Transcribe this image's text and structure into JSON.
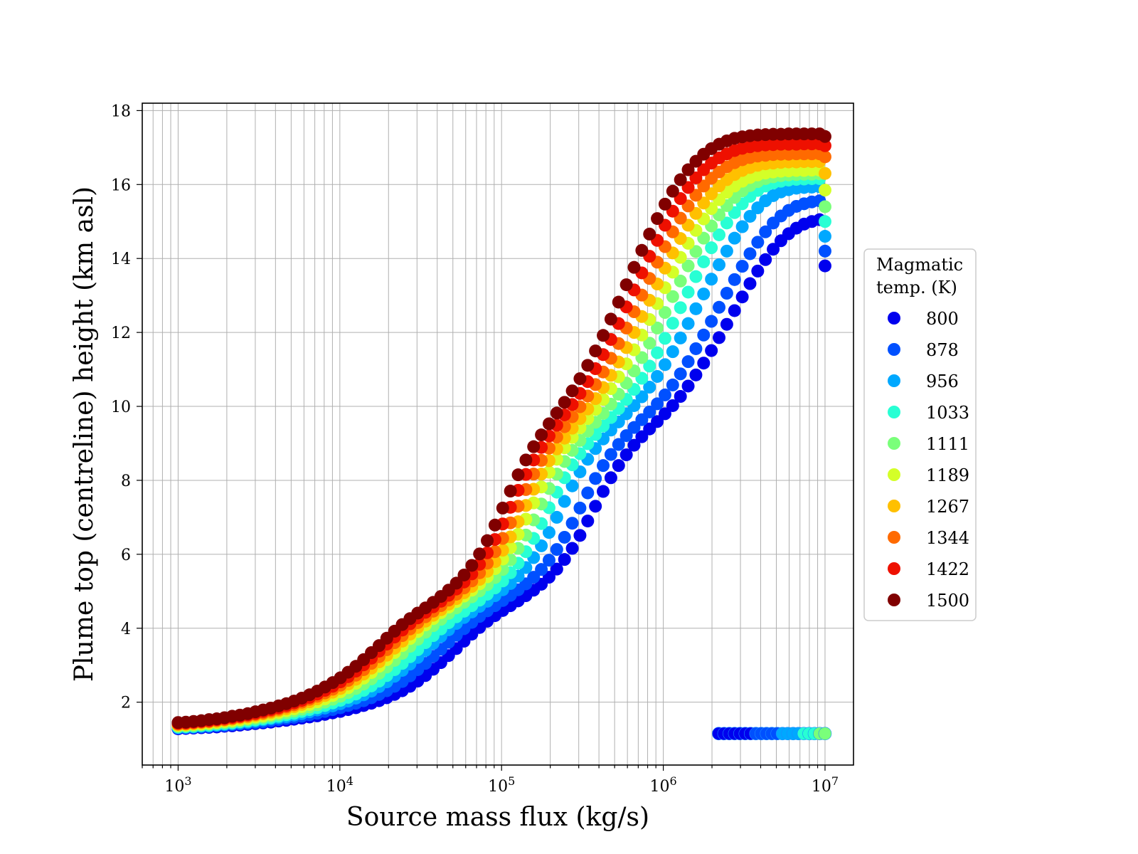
{
  "chart_data": {
    "type": "scatter",
    "title": "",
    "xlabel": "Source mass flux (kg/s)",
    "ylabel": "Plume top (centreline) height (km asl)",
    "xscale": "log",
    "xlim": [
      600,
      15000000
    ],
    "ylim": [
      0.3,
      18.2
    ],
    "x_ticks": [
      {
        "base": "10",
        "exp": "3"
      },
      {
        "base": "10",
        "exp": "4"
      },
      {
        "base": "10",
        "exp": "5"
      },
      {
        "base": "10",
        "exp": "6"
      },
      {
        "base": "10",
        "exp": "7"
      }
    ],
    "x_tick_values": [
      1000,
      10000,
      100000,
      1000000,
      10000000
    ],
    "y_ticks": [
      "2",
      "4",
      "6",
      "8",
      "10",
      "12",
      "14",
      "16",
      "18"
    ],
    "y_tick_values": [
      2,
      4,
      6,
      8,
      10,
      12,
      14,
      16,
      18
    ],
    "grid": true,
    "legend_title": [
      "Magmatic",
      "temp. (K)"
    ],
    "legend_position": "right",
    "x": [
      1000,
      1116,
      1246,
      1391,
      1553,
      1733,
      1935,
      2160,
      2411,
      2692,
      3005,
      3354,
      3744,
      4180,
      4666,
      5209,
      5815,
      6491,
      7246,
      8089,
      9030,
      10080,
      11252,
      12561,
      14022,
      15653,
      17474,
      19506,
      21775,
      24307,
      27135,
      30291,
      33814,
      37747,
      42138,
      47039,
      52510,
      58617,
      65435,
      73046,
      81542,
      91027,
      101614,
      113434,
      126627,
      141356,
      157797,
      176151,
      196640,
      219512,
      245044,
      273545,
      305362,
      340880,
      380528,
      424789,
      474196,
      529352,
      590923,
      659653,
      736379,
      822029,
      917641,
      1024374,
      1143523,
      1276530,
      1425006,
      1590752,
      1775776,
      1982320,
      2212888,
      2470275,
      2757594,
      3078320,
      3436380,
      3836080,
      4282270,
      4780350,
      5336360,
      5957060,
      6649900,
      7423400,
      8287000,
      9251000,
      10000000
    ],
    "series": [
      {
        "name": "800",
        "color": "#0000ee",
        "y": [
          1.28,
          1.29,
          1.3,
          1.31,
          1.32,
          1.33,
          1.35,
          1.36,
          1.38,
          1.4,
          1.42,
          1.44,
          1.46,
          1.49,
          1.51,
          1.54,
          1.57,
          1.6,
          1.63,
          1.67,
          1.71,
          1.75,
          1.8,
          1.85,
          1.91,
          1.97,
          2.04,
          2.12,
          2.21,
          2.31,
          2.43,
          2.57,
          2.72,
          2.89,
          3.07,
          3.26,
          3.45,
          3.65,
          3.84,
          4.02,
          4.19,
          4.34,
          4.48,
          4.61,
          4.74,
          4.88,
          5.03,
          5.19,
          5.38,
          5.6,
          5.86,
          6.16,
          6.51,
          6.9,
          7.3,
          7.7,
          8.07,
          8.4,
          8.69,
          8.95,
          9.18,
          9.39,
          9.59,
          9.8,
          10.02,
          10.27,
          10.55,
          10.85,
          11.17,
          11.51,
          11.86,
          12.22,
          12.59,
          12.96,
          13.32,
          13.66,
          13.97,
          14.25,
          14.48,
          14.67,
          14.82,
          14.93,
          15.0,
          15.05,
          13.8
        ]
      },
      {
        "name": "878",
        "color": "#0050ff",
        "y": [
          1.3,
          1.31,
          1.32,
          1.33,
          1.34,
          1.36,
          1.37,
          1.39,
          1.41,
          1.43,
          1.45,
          1.47,
          1.5,
          1.53,
          1.56,
          1.59,
          1.62,
          1.66,
          1.7,
          1.75,
          1.8,
          1.85,
          1.91,
          1.97,
          2.04,
          2.12,
          2.21,
          2.31,
          2.43,
          2.56,
          2.71,
          2.88,
          3.05,
          3.24,
          3.43,
          3.62,
          3.81,
          3.99,
          4.16,
          4.32,
          4.47,
          4.61,
          4.75,
          4.89,
          5.04,
          5.2,
          5.38,
          5.59,
          5.84,
          6.13,
          6.46,
          6.84,
          7.25,
          7.66,
          8.05,
          8.4,
          8.7,
          8.97,
          9.21,
          9.43,
          9.64,
          9.85,
          10.07,
          10.31,
          10.58,
          10.88,
          11.21,
          11.56,
          11.93,
          12.3,
          12.68,
          13.06,
          13.43,
          13.79,
          14.13,
          14.44,
          14.72,
          14.96,
          15.15,
          15.3,
          15.41,
          15.48,
          15.53,
          15.56,
          14.2
        ]
      },
      {
        "name": "956",
        "color": "#00a8ff",
        "y": [
          1.31,
          1.32,
          1.33,
          1.35,
          1.36,
          1.38,
          1.4,
          1.42,
          1.44,
          1.46,
          1.49,
          1.52,
          1.55,
          1.58,
          1.61,
          1.65,
          1.69,
          1.74,
          1.79,
          1.84,
          1.9,
          1.96,
          2.03,
          2.11,
          2.2,
          2.3,
          2.42,
          2.55,
          2.7,
          2.86,
          3.03,
          3.21,
          3.4,
          3.59,
          3.78,
          3.96,
          4.13,
          4.29,
          4.44,
          4.59,
          4.73,
          4.88,
          5.04,
          5.21,
          5.41,
          5.64,
          5.91,
          6.23,
          6.59,
          7.0,
          7.43,
          7.85,
          8.23,
          8.57,
          8.86,
          9.12,
          9.36,
          9.58,
          9.8,
          10.02,
          10.26,
          10.52,
          10.81,
          11.13,
          11.48,
          11.85,
          12.24,
          12.64,
          13.04,
          13.44,
          13.83,
          14.2,
          14.55,
          14.86,
          15.14,
          15.37,
          15.56,
          15.7,
          15.8,
          15.86,
          15.9,
          15.92,
          15.93,
          15.94,
          14.6
        ]
      },
      {
        "name": "1033",
        "color": "#28ffd4",
        "y": [
          1.33,
          1.34,
          1.35,
          1.37,
          1.38,
          1.4,
          1.42,
          1.44,
          1.47,
          1.49,
          1.52,
          1.55,
          1.58,
          1.62,
          1.66,
          1.7,
          1.75,
          1.8,
          1.85,
          1.91,
          1.98,
          2.05,
          2.13,
          2.22,
          2.32,
          2.44,
          2.57,
          2.72,
          2.88,
          3.05,
          3.23,
          3.42,
          3.61,
          3.8,
          3.98,
          4.15,
          4.31,
          4.46,
          4.61,
          4.76,
          4.92,
          5.09,
          5.28,
          5.5,
          5.76,
          6.07,
          6.43,
          6.83,
          7.26,
          7.68,
          8.07,
          8.42,
          8.72,
          8.99,
          9.24,
          9.47,
          9.7,
          9.94,
          10.19,
          10.46,
          10.76,
          11.09,
          11.45,
          11.84,
          12.25,
          12.67,
          13.09,
          13.51,
          13.91,
          14.29,
          14.64,
          14.96,
          15.24,
          15.48,
          15.68,
          15.84,
          15.96,
          16.04,
          16.09,
          16.12,
          16.14,
          16.15,
          16.16,
          16.16,
          15.0
        ]
      },
      {
        "name": "1111",
        "color": "#7aff7a",
        "y": [
          1.35,
          1.36,
          1.37,
          1.39,
          1.41,
          1.43,
          1.45,
          1.47,
          1.5,
          1.53,
          1.56,
          1.59,
          1.63,
          1.67,
          1.71,
          1.76,
          1.81,
          1.87,
          1.93,
          2.0,
          2.08,
          2.16,
          2.26,
          2.37,
          2.49,
          2.63,
          2.78,
          2.95,
          3.13,
          3.32,
          3.51,
          3.7,
          3.89,
          4.07,
          4.24,
          4.4,
          4.55,
          4.7,
          4.85,
          5.01,
          5.18,
          5.37,
          5.59,
          5.85,
          6.16,
          6.52,
          6.93,
          7.36,
          7.78,
          8.17,
          8.51,
          8.81,
          9.08,
          9.33,
          9.57,
          9.81,
          10.06,
          10.33,
          10.63,
          10.96,
          11.32,
          11.71,
          12.12,
          12.54,
          12.97,
          13.39,
          13.8,
          14.19,
          14.55,
          14.88,
          15.18,
          15.43,
          15.65,
          15.83,
          15.97,
          16.08,
          16.16,
          16.21,
          16.24,
          16.26,
          16.27,
          16.28,
          16.28,
          16.29,
          15.4
        ]
      },
      {
        "name": "1189",
        "color": "#d4ff28",
        "y": [
          1.37,
          1.38,
          1.4,
          1.41,
          1.43,
          1.45,
          1.48,
          1.5,
          1.53,
          1.56,
          1.6,
          1.63,
          1.67,
          1.72,
          1.77,
          1.82,
          1.88,
          1.94,
          2.01,
          2.09,
          2.18,
          2.28,
          2.39,
          2.51,
          2.65,
          2.8,
          2.97,
          3.15,
          3.34,
          3.53,
          3.72,
          3.91,
          4.09,
          4.26,
          4.42,
          4.57,
          4.72,
          4.87,
          5.03,
          5.2,
          5.39,
          5.61,
          5.87,
          6.18,
          6.54,
          6.95,
          7.39,
          7.82,
          8.22,
          8.57,
          8.88,
          9.16,
          9.42,
          9.67,
          9.92,
          10.19,
          10.48,
          10.8,
          11.15,
          11.53,
          11.93,
          12.35,
          12.78,
          13.21,
          13.63,
          14.03,
          14.41,
          14.76,
          15.07,
          15.35,
          15.59,
          15.79,
          15.96,
          16.09,
          16.19,
          16.26,
          16.31,
          16.34,
          16.36,
          16.37,
          16.38,
          16.38,
          16.39,
          16.39,
          15.85
        ]
      },
      {
        "name": "1267",
        "color": "#ffc000",
        "y": [
          1.39,
          1.4,
          1.42,
          1.44,
          1.46,
          1.48,
          1.51,
          1.54,
          1.57,
          1.6,
          1.64,
          1.68,
          1.72,
          1.77,
          1.82,
          1.88,
          1.94,
          2.01,
          2.09,
          2.18,
          2.27,
          2.37,
          2.49,
          2.62,
          2.76,
          2.92,
          3.09,
          3.27,
          3.46,
          3.65,
          3.84,
          4.02,
          4.19,
          4.35,
          4.5,
          4.65,
          4.8,
          4.96,
          5.13,
          5.32,
          5.54,
          5.8,
          6.11,
          6.47,
          6.88,
          7.32,
          7.76,
          8.17,
          8.53,
          8.85,
          9.14,
          9.41,
          9.67,
          9.93,
          10.21,
          10.51,
          10.84,
          11.2,
          11.59,
          12.0,
          12.43,
          12.87,
          13.31,
          13.74,
          14.15,
          14.54,
          14.9,
          15.22,
          15.5,
          15.75,
          15.96,
          16.13,
          16.27,
          16.38,
          16.46,
          16.52,
          16.56,
          16.58,
          16.6,
          16.61,
          16.61,
          16.62,
          16.62,
          16.62,
          16.3
        ]
      },
      {
        "name": "1344",
        "color": "#ff6a00",
        "y": [
          1.41,
          1.42,
          1.44,
          1.46,
          1.48,
          1.51,
          1.53,
          1.56,
          1.6,
          1.63,
          1.67,
          1.71,
          1.76,
          1.81,
          1.87,
          1.93,
          2.0,
          2.08,
          2.16,
          2.25,
          2.35,
          2.46,
          2.59,
          2.73,
          2.88,
          3.05,
          3.23,
          3.42,
          3.61,
          3.8,
          3.98,
          4.15,
          4.31,
          4.46,
          4.61,
          4.76,
          4.92,
          5.09,
          5.28,
          5.5,
          5.76,
          6.07,
          6.43,
          6.85,
          7.3,
          7.75,
          8.17,
          8.54,
          8.87,
          9.17,
          9.45,
          9.72,
          9.99,
          10.28,
          10.59,
          10.93,
          11.3,
          11.7,
          12.12,
          12.56,
          13.01,
          13.46,
          13.9,
          14.32,
          14.72,
          15.09,
          15.42,
          15.71,
          15.96,
          16.17,
          16.34,
          16.48,
          16.59,
          16.67,
          16.73,
          16.77,
          16.79,
          16.81,
          16.82,
          16.82,
          16.83,
          16.83,
          16.83,
          16.83,
          16.75
        ]
      },
      {
        "name": "1422",
        "color": "#ee1000",
        "y": [
          1.43,
          1.44,
          1.46,
          1.48,
          1.5,
          1.53,
          1.56,
          1.59,
          1.62,
          1.66,
          1.7,
          1.75,
          1.8,
          1.85,
          1.91,
          1.98,
          2.05,
          2.13,
          2.22,
          2.32,
          2.43,
          2.55,
          2.69,
          2.84,
          3.01,
          3.19,
          3.38,
          3.57,
          3.76,
          3.95,
          4.12,
          4.28,
          4.43,
          4.58,
          4.73,
          4.89,
          5.06,
          5.25,
          5.47,
          5.73,
          6.04,
          6.4,
          6.82,
          7.27,
          7.73,
          8.16,
          8.55,
          8.89,
          9.2,
          9.49,
          9.77,
          10.05,
          10.35,
          10.67,
          11.02,
          11.4,
          11.81,
          12.24,
          12.69,
          13.15,
          13.61,
          14.06,
          14.49,
          14.9,
          15.28,
          15.62,
          15.92,
          16.18,
          16.4,
          16.58,
          16.72,
          16.83,
          16.92,
          16.98,
          17.02,
          17.05,
          17.07,
          17.08,
          17.09,
          17.09,
          17.09,
          17.1,
          17.1,
          17.1,
          17.05
        ]
      },
      {
        "name": "1500",
        "color": "#800000",
        "y": [
          1.45,
          1.46,
          1.48,
          1.5,
          1.53,
          1.55,
          1.58,
          1.62,
          1.65,
          1.69,
          1.74,
          1.79,
          1.84,
          1.9,
          1.96,
          2.03,
          2.11,
          2.2,
          2.3,
          2.41,
          2.53,
          2.66,
          2.81,
          2.97,
          3.15,
          3.34,
          3.53,
          3.73,
          3.92,
          4.1,
          4.26,
          4.41,
          4.55,
          4.7,
          4.86,
          5.03,
          5.22,
          5.44,
          5.7,
          6.01,
          6.37,
          6.79,
          7.25,
          7.71,
          8.15,
          8.55,
          8.91,
          9.23,
          9.53,
          9.82,
          10.11,
          10.42,
          10.75,
          11.11,
          11.5,
          11.92,
          12.36,
          12.82,
          13.29,
          13.76,
          14.22,
          14.66,
          15.08,
          15.47,
          15.82,
          16.13,
          16.4,
          16.63,
          16.82,
          16.97,
          17.09,
          17.18,
          17.25,
          17.29,
          17.32,
          17.34,
          17.35,
          17.36,
          17.36,
          17.37,
          17.37,
          17.37,
          17.37,
          17.37,
          17.3
        ]
      }
    ],
    "low_branch": {
      "x_start": 2200000,
      "x_end": 10000000,
      "y": 1.15,
      "colors": [
        "#0000ee",
        "#0000ee",
        "#0000ee",
        "#0000ee",
        "#0000ee",
        "#0000ee",
        "#0000ee",
        "#0050ff",
        "#0050ff",
        "#0050ff",
        "#0050ff",
        "#0050ff",
        "#00a8ff",
        "#00a8ff",
        "#00a8ff",
        "#00a8ff",
        "#28ffd4",
        "#28ffd4",
        "#28ffd4",
        "#7aff7a",
        "#7aff7a"
      ]
    }
  }
}
